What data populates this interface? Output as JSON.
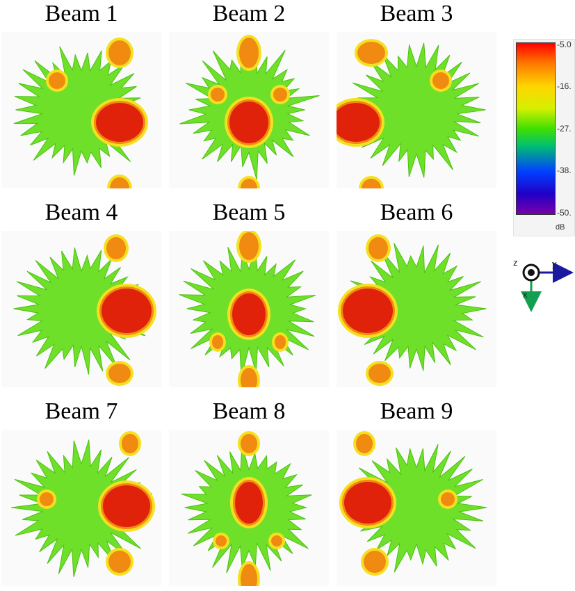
{
  "beams": [
    {
      "title": "Beam 1"
    },
    {
      "title": "Beam 2"
    },
    {
      "title": "Beam 3"
    },
    {
      "title": "Beam 4"
    },
    {
      "title": "Beam 5"
    },
    {
      "title": "Beam 6"
    },
    {
      "title": "Beam 7"
    },
    {
      "title": "Beam 8"
    },
    {
      "title": "Beam 9"
    }
  ],
  "colorbar": {
    "ticks": [
      "-5.0",
      "-16.",
      "-27.",
      "-38.",
      "-50."
    ],
    "unit": "dB",
    "colors": [
      "#ff0000",
      "#ff7a00",
      "#ffd400",
      "#40e000",
      "#0040ff",
      "#7a00a8"
    ]
  },
  "axes": {
    "z": "z",
    "y": "y",
    "x": "x",
    "y_color": "#1a1aa0",
    "x_color": "#12a050"
  },
  "pattern_colors": {
    "background": "#6fe02a",
    "lobe_main": "#e0220a",
    "lobe_mid": "#f08a10",
    "lobe_edge": "#f5e020"
  }
}
